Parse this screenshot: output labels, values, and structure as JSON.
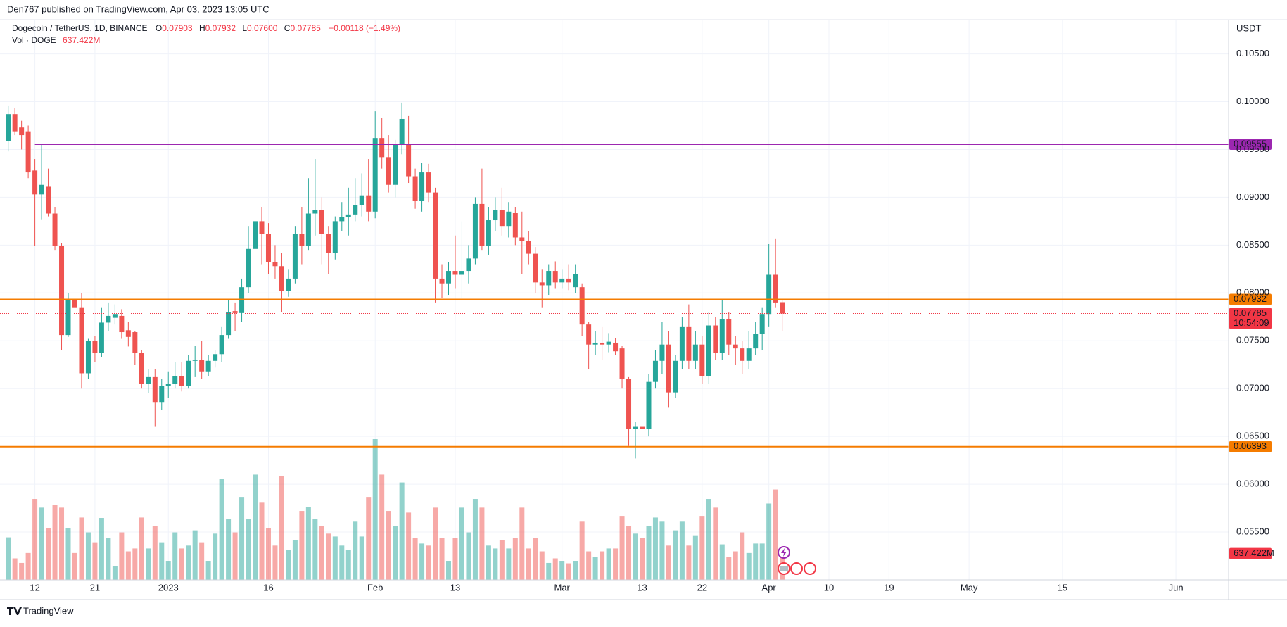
{
  "header": {
    "publisher": "Den767 published on TradingView.com, Apr 03, 2023 13:05 UTC",
    "footer": "TradingView"
  },
  "chart_data": {
    "type": "candlestick",
    "title": "Dogecoin / TetherUS, 1D, BINANCE",
    "ohlc_legend": [
      {
        "key": "O",
        "value": "0.07903"
      },
      {
        "key": "H",
        "value": "0.07932"
      },
      {
        "key": "L",
        "value": "0.07600"
      },
      {
        "key": "C",
        "value": "0.07785"
      }
    ],
    "change": "−0.00118 (−1.49%)",
    "volume_title": "Vol · DOGE",
    "volume_label": "637.422M",
    "currency": "USDT",
    "countdown": "10:54:09",
    "last_price": 0.07785,
    "up_color": "#26a69a",
    "down_color": "#ef5350",
    "grid": true,
    "levels": [
      {
        "value": 0.09555,
        "color": "#9c27b0",
        "start": 4
      },
      {
        "value": 0.07932,
        "color": "#f57c00"
      },
      {
        "value": 0.06393,
        "color": "#f57c00"
      }
    ],
    "xlim": [
      -1.23,
      182.9
    ],
    "xticks": [
      {
        "value": 4,
        "label": "12"
      },
      {
        "value": 13,
        "label": "21"
      },
      {
        "value": 24,
        "label": "2023"
      },
      {
        "value": 39,
        "label": "16"
      },
      {
        "value": 55,
        "label": "Feb"
      },
      {
        "value": 67,
        "label": "13"
      },
      {
        "value": 83,
        "label": "Mar"
      },
      {
        "value": 95,
        "label": "13"
      },
      {
        "value": 104,
        "label": "22"
      },
      {
        "value": 114,
        "label": "Apr"
      },
      {
        "value": 123,
        "label": "10"
      },
      {
        "value": 132,
        "label": "19"
      },
      {
        "value": 144,
        "label": "May"
      },
      {
        "value": 158,
        "label": "15"
      },
      {
        "value": 175,
        "label": "Jun"
      }
    ],
    "ylim": [
      0.05,
      0.1085
    ],
    "yticks": [
      {
        "value": 0.055,
        "label": "0.05500"
      },
      {
        "value": 0.06,
        "label": "0.06000"
      },
      {
        "value": 0.065,
        "label": "0.06500"
      },
      {
        "value": 0.07,
        "label": "0.07000"
      },
      {
        "value": 0.075,
        "label": "0.07500"
      },
      {
        "value": 0.08,
        "label": "0.08000"
      },
      {
        "value": 0.085,
        "label": "0.08500"
      },
      {
        "value": 0.09,
        "label": "0.09000"
      },
      {
        "value": 0.095,
        "label": "0.09500"
      },
      {
        "value": 0.1,
        "label": "0.10000"
      },
      {
        "value": 0.105,
        "label": "0.10500"
      }
    ],
    "open": [
      0.0959,
      0.0987,
      0.0973,
      0.0969,
      0.0928,
      0.0903,
      0.0911,
      0.0883,
      0.0849,
      0.0756,
      0.0793,
      0.0785,
      0.0716,
      0.075,
      0.0737,
      0.0769,
      0.0774,
      0.0776,
      0.0761,
      0.0759,
      0.0737,
      0.0705,
      0.0712,
      0.0686,
      0.0703,
      0.0705,
      0.0713,
      0.0703,
      0.0729,
      0.073,
      0.0718,
      0.0729,
      0.0736,
      0.0756,
      0.0781,
      0.0779,
      0.0806,
      0.0846,
      0.0875,
      0.0862,
      0.0832,
      0.0828,
      0.0802,
      0.0815,
      0.0862,
      0.0849,
      0.0883,
      0.0887,
      0.0862,
      0.0842,
      0.0875,
      0.0879,
      0.0882,
      0.0892,
      0.0902,
      0.0885,
      0.0962,
      0.0942,
      0.0913,
      0.0956,
      0.0956,
      0.0922,
      0.0896,
      0.0926,
      0.0905,
      0.0815,
      0.081,
      0.0823,
      0.0819,
      0.0823,
      0.0836,
      0.0893,
      0.0849,
      0.0876,
      0.0887,
      0.087,
      0.0884,
      0.0858,
      0.0854,
      0.0841,
      0.0811,
      0.0808,
      0.0823,
      0.0811,
      0.0815,
      0.0806,
      0.0806,
      0.0767,
      0.0746,
      0.0748,
      0.0746,
      0.0748,
      0.0742,
      0.071,
      0.0658,
      0.066,
      0.0658,
      0.0707,
      0.0729,
      0.0746,
      0.0696,
      0.0729,
      0.0765,
      0.0729,
      0.0746,
      0.0713,
      0.0766,
      0.0737,
      0.0773,
      0.0746,
      0.0742,
      0.0729,
      0.0742,
      0.0757,
      0.0778,
      0.0819,
      0.07903
    ],
    "high": [
      0.0996,
      0.0993,
      0.098,
      0.0975,
      0.094,
      0.0955,
      0.093,
      0.089,
      0.0852,
      0.08,
      0.0802,
      0.08,
      0.0752,
      0.0755,
      0.0785,
      0.079,
      0.0788,
      0.0783,
      0.077,
      0.076,
      0.074,
      0.072,
      0.072,
      0.071,
      0.0718,
      0.0728,
      0.0728,
      0.0735,
      0.0745,
      0.075,
      0.0735,
      0.074,
      0.0765,
      0.0793,
      0.079,
      0.0815,
      0.087,
      0.0928,
      0.089,
      0.0873,
      0.085,
      0.0842,
      0.0825,
      0.087,
      0.089,
      0.092,
      0.094,
      0.09,
      0.087,
      0.088,
      0.0895,
      0.091,
      0.092,
      0.0925,
      0.094,
      0.099,
      0.0983,
      0.0965,
      0.096,
      0.0999,
      0.0985,
      0.093,
      0.0936,
      0.0935,
      0.091,
      0.083,
      0.0832,
      0.086,
      0.0875,
      0.085,
      0.09,
      0.093,
      0.089,
      0.09,
      0.091,
      0.0895,
      0.089,
      0.0885,
      0.0865,
      0.0848,
      0.0825,
      0.083,
      0.0833,
      0.0825,
      0.083,
      0.083,
      0.081,
      0.077,
      0.076,
      0.0765,
      0.0758,
      0.0753,
      0.0745,
      0.0712,
      0.0665,
      0.0665,
      0.0715,
      0.074,
      0.077,
      0.076,
      0.0735,
      0.0775,
      0.0788,
      0.076,
      0.0755,
      0.078,
      0.0775,
      0.0793,
      0.078,
      0.0755,
      0.075,
      0.076,
      0.077,
      0.0785,
      0.0851,
      0.0857,
      0.07932
    ],
    "low": [
      0.0948,
      0.0965,
      0.095,
      0.092,
      0.0849,
      0.0877,
      0.088,
      0.0845,
      0.074,
      0.0754,
      0.0778,
      0.07,
      0.071,
      0.0728,
      0.0733,
      0.076,
      0.0767,
      0.0752,
      0.0744,
      0.0725,
      0.07,
      0.0695,
      0.066,
      0.0678,
      0.069,
      0.07,
      0.0697,
      0.07,
      0.0712,
      0.071,
      0.0713,
      0.0722,
      0.0728,
      0.0752,
      0.076,
      0.077,
      0.08,
      0.084,
      0.083,
      0.082,
      0.0815,
      0.078,
      0.0796,
      0.081,
      0.083,
      0.0845,
      0.086,
      0.083,
      0.082,
      0.0835,
      0.0865,
      0.086,
      0.0875,
      0.088,
      0.0875,
      0.0878,
      0.093,
      0.0905,
      0.09,
      0.0945,
      0.0915,
      0.0888,
      0.0885,
      0.0895,
      0.079,
      0.0795,
      0.0798,
      0.0805,
      0.0795,
      0.081,
      0.083,
      0.0845,
      0.084,
      0.0865,
      0.086,
      0.0858,
      0.085,
      0.082,
      0.083,
      0.08,
      0.0785,
      0.0798,
      0.0805,
      0.0805,
      0.0803,
      0.08,
      0.0755,
      0.072,
      0.0735,
      0.073,
      0.0738,
      0.0735,
      0.07,
      0.064,
      0.0627,
      0.0635,
      0.065,
      0.07,
      0.0715,
      0.068,
      0.069,
      0.072,
      0.072,
      0.072,
      0.0705,
      0.0705,
      0.073,
      0.073,
      0.0735,
      0.0725,
      0.0715,
      0.072,
      0.0735,
      0.074,
      0.0765,
      0.0785,
      0.076
    ],
    "close": [
      0.0987,
      0.0969,
      0.0965,
      0.0926,
      0.0903,
      0.0913,
      0.0883,
      0.0849,
      0.0756,
      0.0793,
      0.0785,
      0.0716,
      0.075,
      0.0737,
      0.0769,
      0.0776,
      0.0778,
      0.0759,
      0.0754,
      0.0737,
      0.0705,
      0.0712,
      0.0686,
      0.0703,
      0.0705,
      0.0713,
      0.0703,
      0.0729,
      0.073,
      0.0718,
      0.0729,
      0.0736,
      0.0756,
      0.078,
      0.0779,
      0.0806,
      0.0846,
      0.0875,
      0.0862,
      0.0832,
      0.0828,
      0.0802,
      0.0815,
      0.0862,
      0.0849,
      0.0883,
      0.0887,
      0.0862,
      0.0842,
      0.0875,
      0.0879,
      0.0882,
      0.0892,
      0.0902,
      0.0885,
      0.0962,
      0.0942,
      0.0913,
      0.0956,
      0.0982,
      0.0922,
      0.0896,
      0.0926,
      0.0905,
      0.0815,
      0.081,
      0.0823,
      0.0819,
      0.0823,
      0.0836,
      0.0893,
      0.0849,
      0.0876,
      0.0887,
      0.087,
      0.0885,
      0.0858,
      0.0854,
      0.0841,
      0.0811,
      0.0808,
      0.0823,
      0.0811,
      0.0815,
      0.0811,
      0.082,
      0.0767,
      0.0746,
      0.0748,
      0.0746,
      0.0749,
      0.0739,
      0.071,
      0.0658,
      0.066,
      0.0658,
      0.0707,
      0.0729,
      0.0746,
      0.0696,
      0.0729,
      0.0765,
      0.0729,
      0.0746,
      0.0713,
      0.0766,
      0.0737,
      0.0773,
      0.0746,
      0.0742,
      0.0729,
      0.0742,
      0.0757,
      0.0778,
      0.0819,
      0.079,
      0.07785
    ],
    "volume": [
      1030,
      520,
      410,
      650,
      1960,
      1750,
      1260,
      1810,
      1750,
      1260,
      650,
      1510,
      1150,
      910,
      1500,
      1010,
      330,
      1150,
      690,
      760,
      1510,
      760,
      1310,
      910,
      460,
      1150,
      760,
      830,
      1200,
      910,
      460,
      1120,
      2440,
      1480,
      1150,
      2010,
      1480,
      2550,
      1870,
      1260,
      830,
      2510,
      720,
      960,
      1670,
      1770,
      1480,
      1310,
      1120,
      1050,
      830,
      720,
      1410,
      1050,
      2010,
      3410,
      2550,
      1670,
      1310,
      2360,
      1630,
      1010,
      880,
      830,
      1750,
      1010,
      460,
      1010,
      1750,
      1150,
      1960,
      1750,
      830,
      760,
      960,
      760,
      1010,
      1750,
      760,
      1010,
      690,
      410,
      520,
      460,
      400,
      460,
      1410,
      690,
      550,
      690,
      760,
      760,
      1550,
      1310,
      1120,
      1010,
      1310,
      1510,
      1410,
      830,
      1200,
      1410,
      830,
      1080,
      1550,
      1960,
      1750,
      860,
      550,
      690,
      1150,
      650,
      880,
      880,
      1850,
      2190,
      637.422
    ]
  }
}
